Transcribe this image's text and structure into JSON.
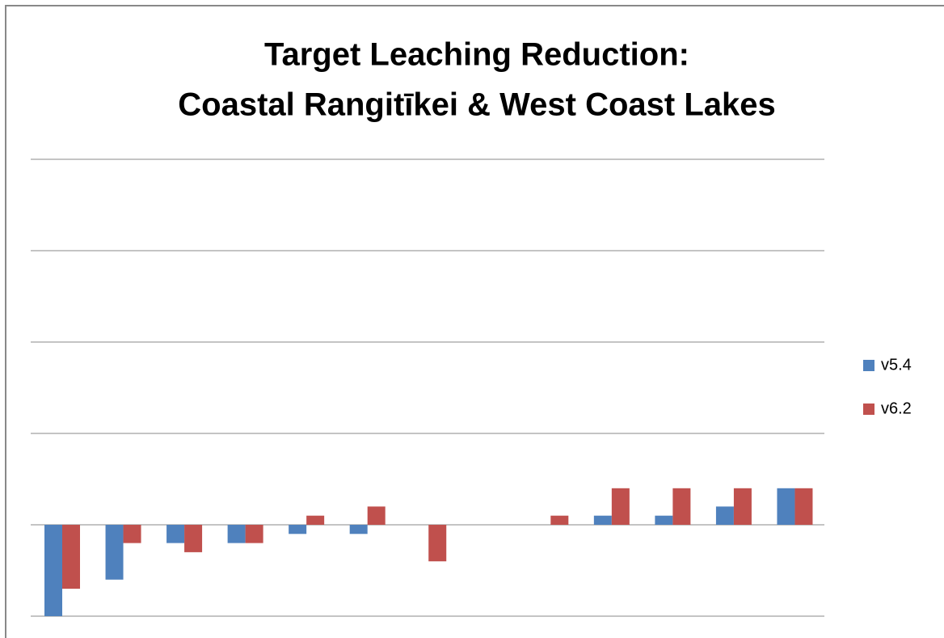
{
  "chart_data": {
    "type": "bar",
    "title": [
      "Target Leaching Reduction:",
      "Coastal Rangitīkei & West Coast Lakes"
    ],
    "categories": [
      null,
      null,
      null,
      null,
      null,
      null,
      null,
      null,
      null,
      null,
      null,
      null,
      null
    ],
    "series": [
      {
        "name": "v5.4",
        "color": "#4f81bd",
        "values": [
          -1.0,
          -0.6,
          -0.2,
          -0.2,
          -0.1,
          -0.1,
          0,
          0,
          0,
          0.1,
          0.1,
          0.2,
          0.4
        ]
      },
      {
        "name": "v6.2",
        "color": "#c0504d",
        "values": [
          -0.7,
          -0.2,
          -0.3,
          -0.2,
          0.1,
          0.2,
          -0.4,
          0,
          0.1,
          0.4,
          0.4,
          0.4,
          0.4
        ]
      }
    ],
    "ylim": [
      -1,
      4
    ],
    "yticks": [
      -1,
      0,
      1,
      2,
      3,
      4
    ],
    "grid": true,
    "legend": "right"
  }
}
